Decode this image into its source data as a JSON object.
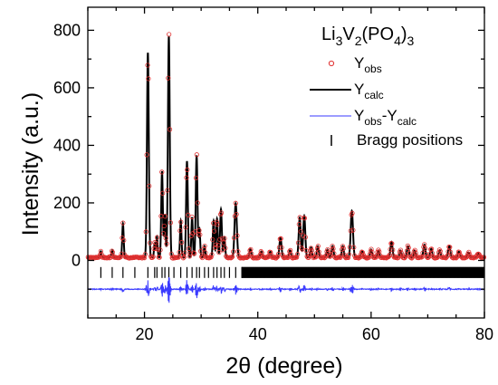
{
  "chart_data": {
    "type": "line",
    "title": "",
    "annotation": {
      "parts": [
        {
          "t": "Li",
          "s": ""
        },
        {
          "t": "3",
          "s": "sub"
        },
        {
          "t": "V",
          "s": ""
        },
        {
          "t": "2",
          "s": "sub"
        },
        {
          "t": "(PO",
          "s": ""
        },
        {
          "t": "4",
          "s": "sub"
        },
        {
          "t": ")",
          "s": ""
        },
        {
          "t": "3",
          "s": "sub"
        }
      ]
    },
    "xlabel": "2θ (degree)",
    "ylabel": "Intensity (a.u.)",
    "xlim": [
      10,
      80
    ],
    "ylim": [
      -200,
      880
    ],
    "xticks": [
      20,
      40,
      60,
      80
    ],
    "yticks": [
      0,
      200,
      400,
      600,
      800
    ],
    "grid": false,
    "legend_position": "top-right",
    "legend": [
      {
        "key": "obs",
        "marker": "circle",
        "color": "#e03030",
        "parts": [
          {
            "t": "Y",
            "s": ""
          },
          {
            "t": "obs",
            "s": "sub"
          }
        ]
      },
      {
        "key": "calc",
        "marker": "line",
        "color": "#000000",
        "parts": [
          {
            "t": "Y",
            "s": ""
          },
          {
            "t": "calc",
            "s": "sub"
          }
        ]
      },
      {
        "key": "diff",
        "marker": "line",
        "color": "#3a3aff",
        "parts": [
          {
            "t": "Y",
            "s": ""
          },
          {
            "t": "obs",
            "s": "sub"
          },
          {
            "t": "-Y",
            "s": ""
          },
          {
            "t": "calc",
            "s": "sub"
          }
        ]
      },
      {
        "key": "bragg",
        "marker": "bar",
        "color": "#000000",
        "parts": [
          {
            "t": "Bragg positions",
            "s": ""
          }
        ]
      }
    ],
    "series": [
      {
        "key": "calc",
        "color": "#000000"
      },
      {
        "key": "obs",
        "color": "#e03030"
      },
      {
        "key": "diff",
        "color": "#3a3aff",
        "offset": -100
      },
      {
        "key": "bragg",
        "color": "#000000",
        "level": -42
      }
    ],
    "background": 10,
    "peaks": [
      {
        "x": 12.3,
        "h": 22,
        "w": 0.12
      },
      {
        "x": 14.3,
        "h": 25,
        "w": 0.12
      },
      {
        "x": 16.2,
        "h": 118,
        "w": 0.13
      },
      {
        "x": 20.6,
        "h": 712,
        "w": 0.16
      },
      {
        "x": 21.8,
        "h": 50,
        "w": 0.12
      },
      {
        "x": 22.2,
        "h": 72,
        "w": 0.12
      },
      {
        "x": 23.1,
        "h": 300,
        "w": 0.14
      },
      {
        "x": 23.6,
        "h": 150,
        "w": 0.13
      },
      {
        "x": 24.3,
        "h": 770,
        "w": 0.16
      },
      {
        "x": 26.4,
        "h": 128,
        "w": 0.13
      },
      {
        "x": 27.5,
        "h": 335,
        "w": 0.15
      },
      {
        "x": 28.4,
        "h": 140,
        "w": 0.13
      },
      {
        "x": 29.2,
        "h": 355,
        "w": 0.15
      },
      {
        "x": 29.7,
        "h": 100,
        "w": 0.13
      },
      {
        "x": 30.6,
        "h": 40,
        "w": 0.13
      },
      {
        "x": 32.2,
        "h": 128,
        "w": 0.14
      },
      {
        "x": 32.8,
        "h": 135,
        "w": 0.14
      },
      {
        "x": 33.5,
        "h": 168,
        "w": 0.15
      },
      {
        "x": 34.1,
        "h": 70,
        "w": 0.14
      },
      {
        "x": 36.1,
        "h": 188,
        "w": 0.2
      },
      {
        "x": 38.7,
        "h": 30,
        "w": 0.15
      },
      {
        "x": 40.6,
        "h": 22,
        "w": 0.15
      },
      {
        "x": 42.2,
        "h": 20,
        "w": 0.15
      },
      {
        "x": 44.0,
        "h": 70,
        "w": 0.18
      },
      {
        "x": 45.7,
        "h": 25,
        "w": 0.15
      },
      {
        "x": 47.4,
        "h": 138,
        "w": 0.18
      },
      {
        "x": 48.2,
        "h": 145,
        "w": 0.18
      },
      {
        "x": 49.4,
        "h": 35,
        "w": 0.15
      },
      {
        "x": 50.6,
        "h": 40,
        "w": 0.16
      },
      {
        "x": 52.3,
        "h": 28,
        "w": 0.16
      },
      {
        "x": 53.2,
        "h": 40,
        "w": 0.17
      },
      {
        "x": 55.0,
        "h": 40,
        "w": 0.17
      },
      {
        "x": 56.6,
        "h": 162,
        "w": 0.2
      },
      {
        "x": 58.4,
        "h": 22,
        "w": 0.16
      },
      {
        "x": 60.0,
        "h": 28,
        "w": 0.17
      },
      {
        "x": 61.3,
        "h": 25,
        "w": 0.17
      },
      {
        "x": 63.6,
        "h": 55,
        "w": 0.18
      },
      {
        "x": 65.2,
        "h": 25,
        "w": 0.17
      },
      {
        "x": 66.5,
        "h": 40,
        "w": 0.18
      },
      {
        "x": 67.7,
        "h": 25,
        "w": 0.17
      },
      {
        "x": 69.4,
        "h": 45,
        "w": 0.18
      },
      {
        "x": 70.6,
        "h": 30,
        "w": 0.17
      },
      {
        "x": 72.1,
        "h": 25,
        "w": 0.17
      },
      {
        "x": 73.8,
        "h": 40,
        "w": 0.18
      },
      {
        "x": 75.5,
        "h": 20,
        "w": 0.17
      },
      {
        "x": 77.2,
        "h": 18,
        "w": 0.17
      },
      {
        "x": 78.9,
        "h": 15,
        "w": 0.17
      }
    ],
    "obs_step": 0.14,
    "bragg_positions_sparse": [
      12.3,
      14.3,
      16.2,
      18.3,
      20.6,
      21.8,
      22.2,
      23.1,
      23.6,
      24.3,
      25.2,
      26.4,
      27.5,
      28.4,
      29.2,
      29.7,
      30.6,
      31.3,
      32.2,
      32.8,
      33.5,
      34.1,
      35.0,
      36.1,
      37.2
    ],
    "bragg_dense_range": [
      37.2,
      80
    ],
    "bragg_dense_step": 0.09
  }
}
